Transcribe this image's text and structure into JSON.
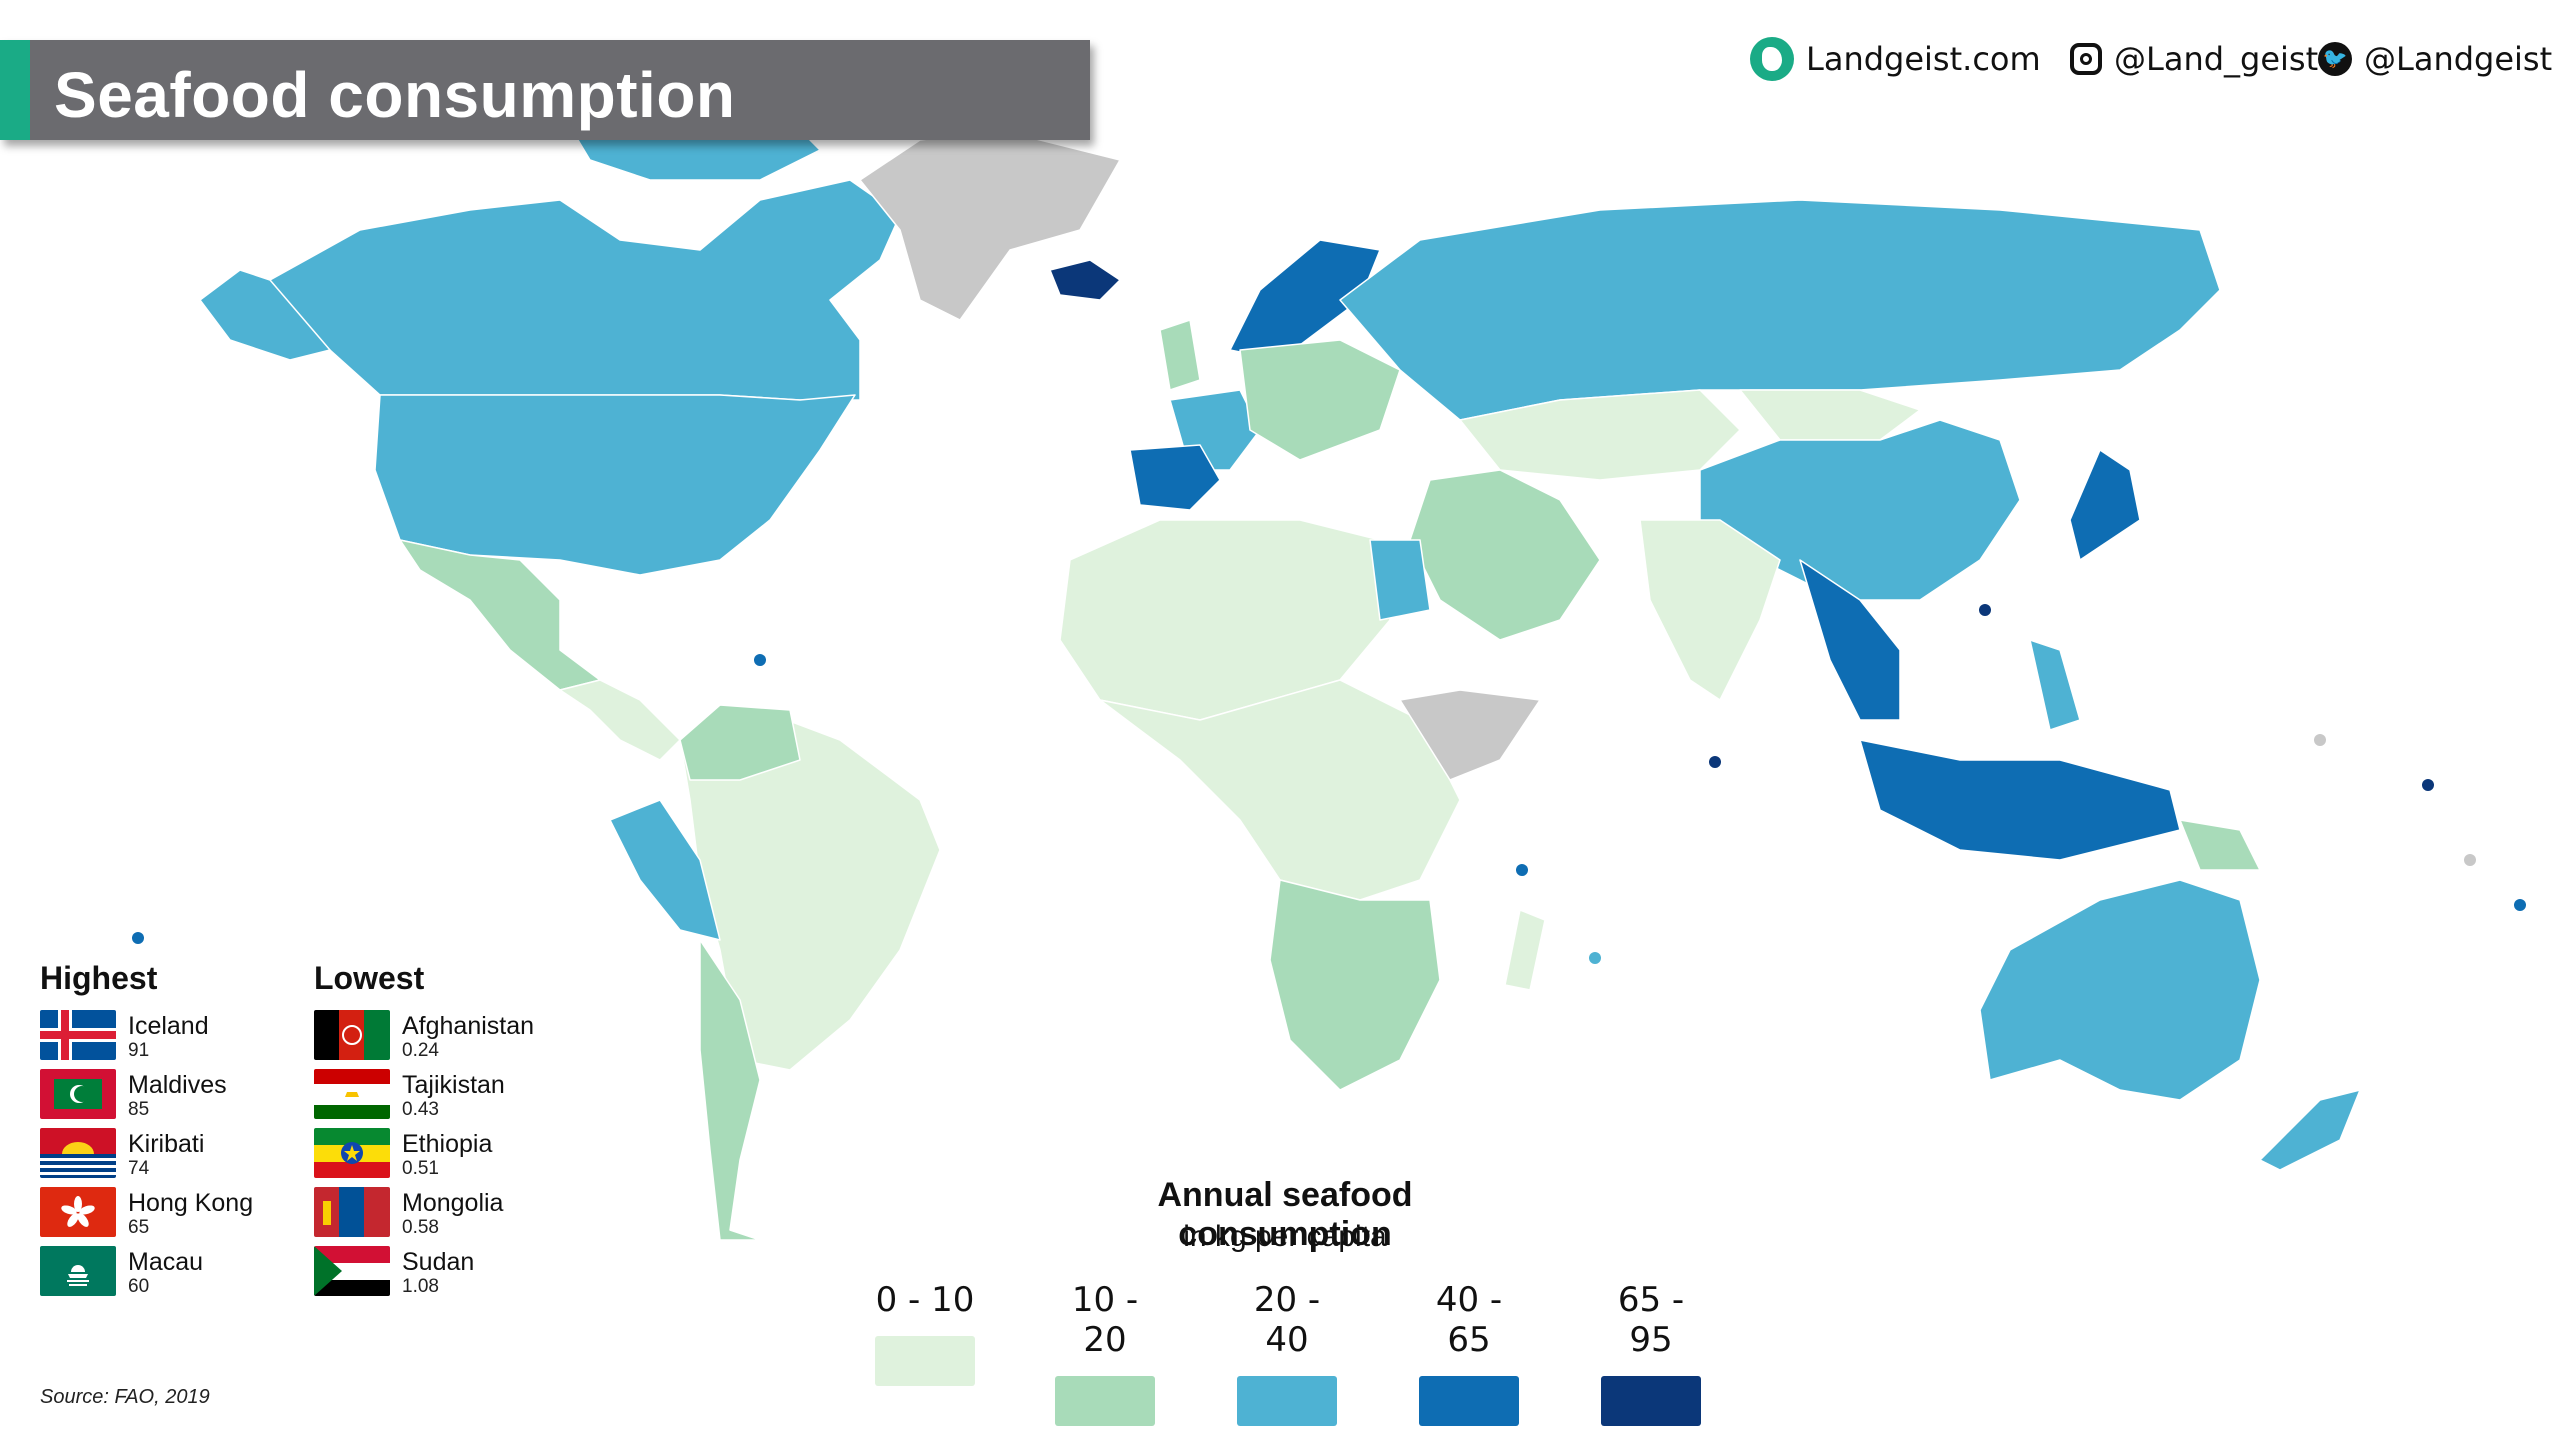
{
  "title": "Seafood consumption",
  "social": {
    "website": "Landgeist.com",
    "instagram": "@Land_geist",
    "twitter": "@Landgeist"
  },
  "highest": {
    "heading": "Highest",
    "items": [
      {
        "name": "Iceland",
        "value": "91"
      },
      {
        "name": "Maldives",
        "value": "85"
      },
      {
        "name": "Kiribati",
        "value": "74"
      },
      {
        "name": "Hong Kong",
        "value": "65"
      },
      {
        "name": "Macau",
        "value": "60"
      }
    ]
  },
  "lowest": {
    "heading": "Lowest",
    "items": [
      {
        "name": "Afghanistan",
        "value": "0.24"
      },
      {
        "name": "Tajikistan",
        "value": "0.43"
      },
      {
        "name": "Ethiopia",
        "value": "0.51"
      },
      {
        "name": "Mongolia",
        "value": "0.58"
      },
      {
        "name": "Sudan",
        "value": "1.08"
      }
    ]
  },
  "legend": {
    "title": "Annual seafood consumption",
    "subtitle": "in kg per capita",
    "bins": [
      {
        "label": "0 - 10",
        "color": "#dff2dd"
      },
      {
        "label": "10 - 20",
        "color": "#a8dbb9"
      },
      {
        "label": "20 - 40",
        "color": "#4eb2d3"
      },
      {
        "label": "40 - 65",
        "color": "#0e6db3"
      },
      {
        "label": "65 - 95",
        "color": "#0b3779"
      }
    ],
    "no_data_color": "#c8c8c8"
  },
  "source": "Source: FAO, 2019"
}
